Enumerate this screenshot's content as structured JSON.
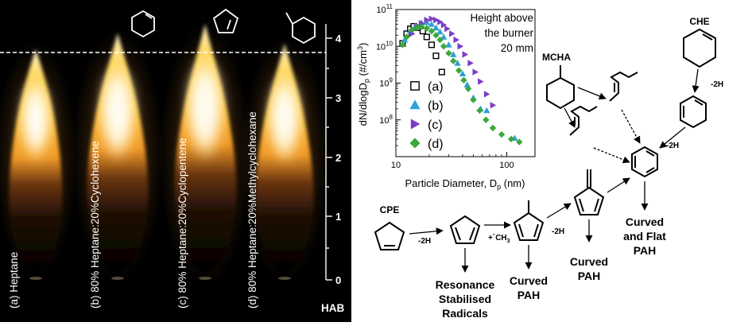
{
  "flames": {
    "labels": [
      "(a) Heptane",
      "(b) 80% Heptane:20%Cyclohexene",
      "(c) 80% Heptane:20%Cyclopentene",
      "(d) 80% Heptane:20%Methylcyclohexane"
    ],
    "hab_label": "HAB",
    "hab_ticks": [
      "0",
      "1",
      "2",
      "3",
      "4"
    ]
  },
  "chart_data": {
    "type": "scatter",
    "xlabel": "Particle Diameter, D",
    "xlabel_sub": "p",
    "xlabel_unit": " (nm)",
    "ylabel": "dN/dlogD",
    "ylabel_sub": "p",
    "ylabel_unit": " (#/cm",
    "ylabel_sup": "3",
    "ylabel_end": ")",
    "annotation": [
      "Height above",
      "the burner",
      "20 mm"
    ],
    "x_ticks": [
      "10",
      "100"
    ],
    "y_ticks": [
      {
        "base": "10",
        "exp": "8"
      },
      {
        "base": "10",
        "exp": "9"
      },
      {
        "base": "10",
        "exp": "10"
      },
      {
        "base": "10",
        "exp": "11"
      }
    ],
    "xlim": [
      10,
      180
    ],
    "ylim": [
      10000000.0,
      100000000000.0
    ],
    "x_log": true,
    "y_log": true,
    "series": [
      {
        "name": "(a)",
        "marker": "square-open",
        "color": "#000000",
        "points": [
          [
            11.5,
            12000000000.0
          ],
          [
            12.5,
            22000000000.0
          ],
          [
            13.5,
            30000000000.0
          ],
          [
            14.5,
            35000000000.0
          ],
          [
            16,
            32000000000.0
          ],
          [
            17.5,
            26000000000.0
          ],
          [
            19,
            18000000000.0
          ],
          [
            21,
            11000000000.0
          ],
          [
            23,
            5500000000.0
          ],
          [
            26,
            2000000000.0
          ]
        ]
      },
      {
        "name": "(b)",
        "marker": "triangle-up",
        "color": "#2e9fd8",
        "points": [
          [
            12,
            15000000000.0
          ],
          [
            13.5,
            26000000000.0
          ],
          [
            15,
            36000000000.0
          ],
          [
            17,
            44000000000.0
          ],
          [
            19,
            45000000000.0
          ],
          [
            21,
            40000000000.0
          ],
          [
            23,
            32000000000.0
          ],
          [
            25,
            25000000000.0
          ],
          [
            27,
            18000000000.0
          ],
          [
            30,
            11000000000.0
          ],
          [
            33,
            6000000000.0
          ],
          [
            36,
            3500000000.0
          ],
          [
            40,
            1800000000.0
          ],
          [
            44,
            900000000.0
          ],
          [
            50,
            400000000.0
          ],
          [
            58,
            200000000.0
          ],
          [
            66,
            180000000.0
          ],
          [
            118,
            32000000.0
          ]
        ]
      },
      {
        "name": "(c)",
        "marker": "triangle-right",
        "color": "#7b3fc4",
        "points": [
          [
            14,
            22000000000.0
          ],
          [
            15.5,
            32000000000.0
          ],
          [
            17,
            42000000000.0
          ],
          [
            19,
            52000000000.0
          ],
          [
            21,
            56000000000.0
          ],
          [
            23,
            52000000000.0
          ],
          [
            25,
            46000000000.0
          ],
          [
            27,
            38000000000.0
          ],
          [
            29,
            30000000000.0
          ],
          [
            32,
            22000000000.0
          ],
          [
            35,
            15000000000.0
          ],
          [
            38,
            10000000000.0
          ],
          [
            42,
            6000000000.0
          ],
          [
            47,
            3500000000.0
          ],
          [
            52,
            2000000000.0
          ],
          [
            58,
            1100000000.0
          ],
          [
            66,
            500000000.0
          ],
          [
            75,
            250000000.0
          ]
        ]
      },
      {
        "name": "(d)",
        "marker": "diamond",
        "color": "#3aa83a",
        "points": [
          [
            11.5,
            11000000000.0
          ],
          [
            12.5,
            18000000000.0
          ],
          [
            14,
            28000000000.0
          ],
          [
            15.5,
            32000000000.0
          ],
          [
            17,
            34000000000.0
          ],
          [
            19,
            31000000000.0
          ],
          [
            21,
            26000000000.0
          ],
          [
            23,
            20000000000.0
          ],
          [
            25,
            15000000000.0
          ],
          [
            27,
            10000000000.0
          ],
          [
            30,
            6500000000.0
          ],
          [
            33,
            4000000000.0
          ],
          [
            37,
            2200000000.0
          ],
          [
            41,
            1200000000.0
          ],
          [
            45,
            700000000.0
          ],
          [
            50,
            350000000.0
          ],
          [
            57,
            180000000.0
          ],
          [
            65,
            100000000.0
          ],
          [
            75,
            60000000.0
          ],
          [
            90,
            40000000.0
          ],
          [
            110,
            30000000.0
          ],
          [
            130,
            25000000.0
          ]
        ]
      }
    ]
  },
  "mechanism": {
    "che": "CHE",
    "mcha": "MCHA",
    "cpe": "CPE",
    "minus_2h": "-2H",
    "plus_ch3_pre": "+",
    "plus_ch3_sup": "·",
    "plus_ch3_main": "CH",
    "plus_ch3_sub": "3",
    "resonance": [
      "Resonance",
      "Stabilised",
      "Radicals"
    ],
    "curved_pah": [
      "Curved",
      "PAH"
    ],
    "curved_flat": [
      "Curved",
      "and Flat",
      "PAH"
    ]
  }
}
